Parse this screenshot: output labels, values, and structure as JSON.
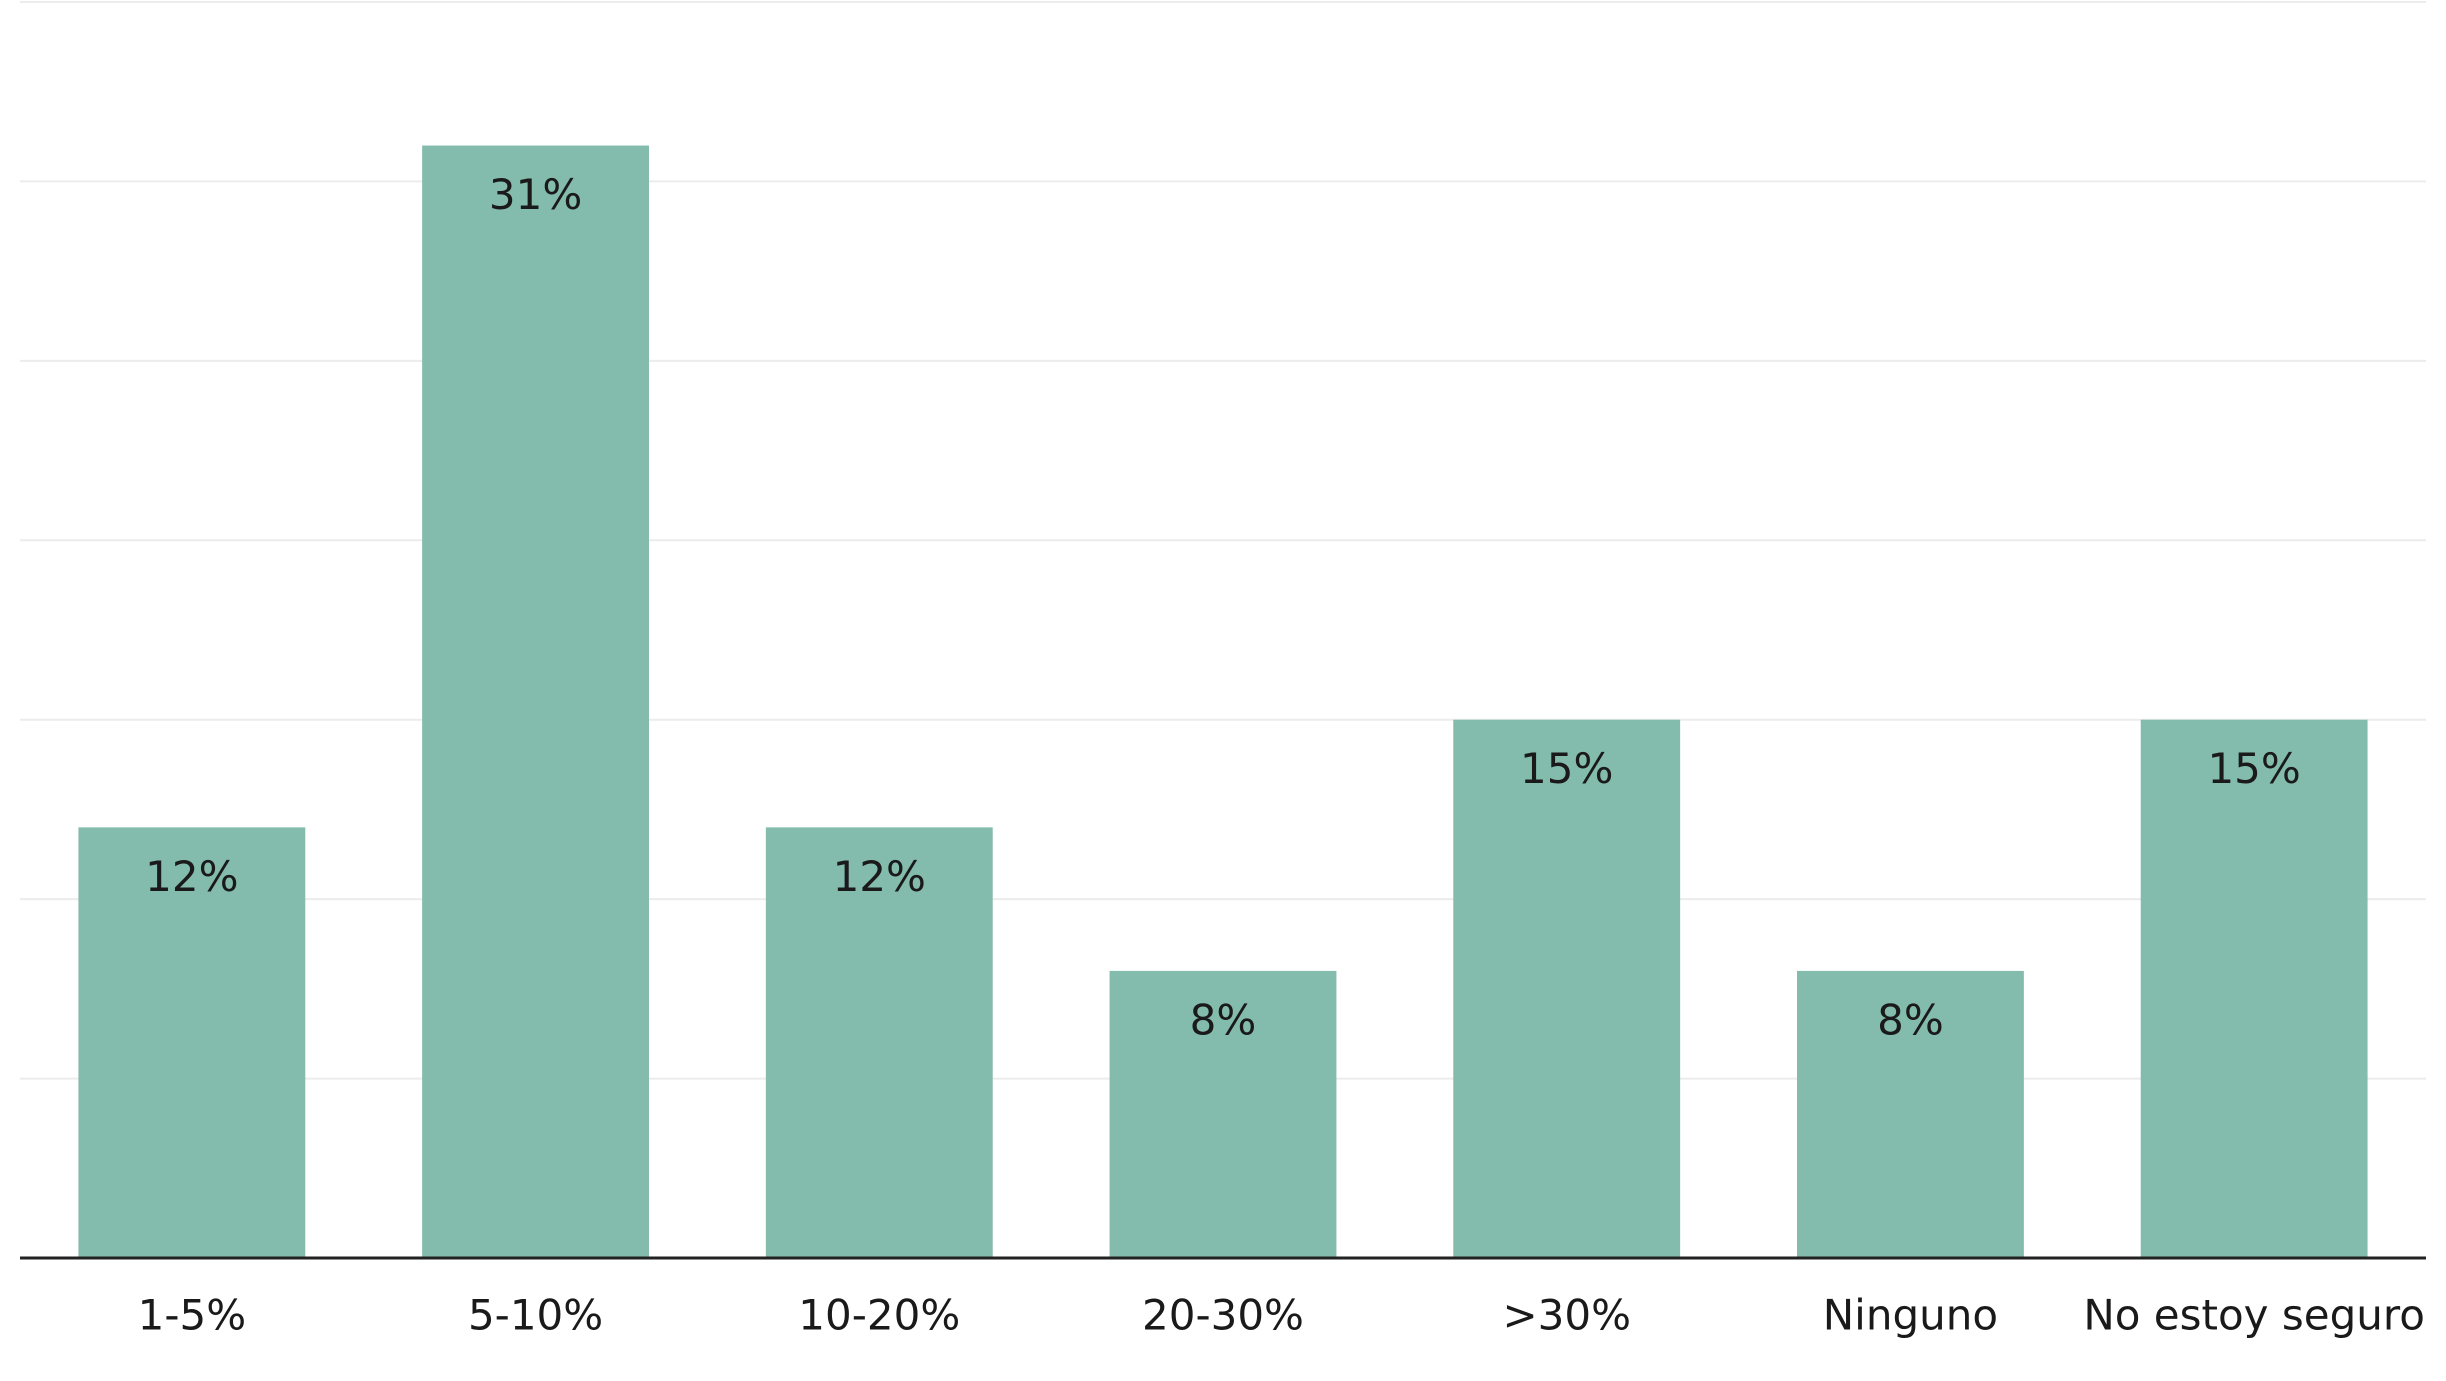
{
  "chart_data": {
    "type": "bar",
    "categories": [
      "1-5%",
      "5-10%",
      "10-20%",
      "20-30%",
      ">30%",
      "Ninguno",
      "No estoy seguro"
    ],
    "values": [
      12,
      31,
      12,
      8,
      15,
      8,
      15
    ],
    "value_labels": [
      "12%",
      "31%",
      "12%",
      "8%",
      "15%",
      "8%",
      "15%"
    ],
    "color": "#83bbad",
    "ylim": [
      0,
      35
    ],
    "yticks": [
      0,
      5,
      10,
      15,
      20,
      25,
      30,
      35
    ],
    "grid": true
  }
}
